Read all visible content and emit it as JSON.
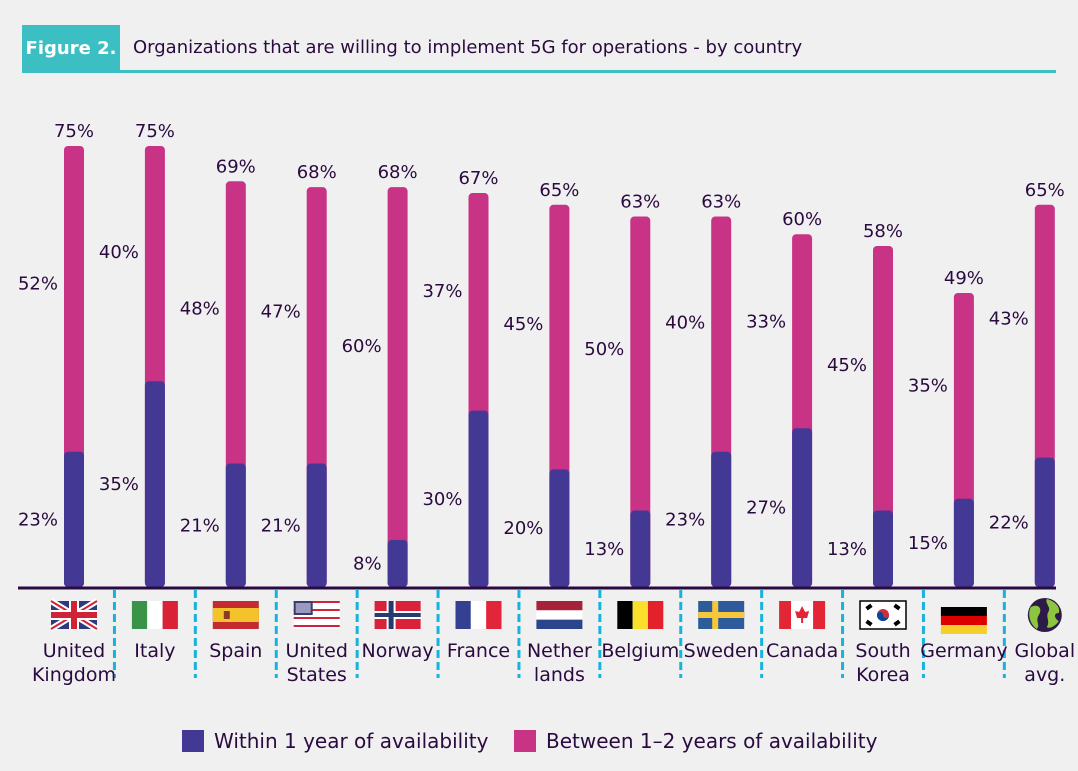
{
  "header": {
    "figure_label": "Figure 2.",
    "title": "Organizations that are willing to implement 5G for operations - by country"
  },
  "colors": {
    "within_1_year": "#433995",
    "between_1_2_years": "#c83386",
    "axis": "#2a0a3f",
    "divider": "#17b3df",
    "accent": "#3bbfc2",
    "text": "#2a0a3f"
  },
  "legend": [
    {
      "label": "Within 1 year of availability",
      "color": "#433995"
    },
    {
      "label": "Between 1–2 years of availability",
      "color": "#c83386"
    }
  ],
  "chart_data": {
    "type": "bar",
    "stacked": true,
    "title": "Organizations that are willing to implement 5G for operations - by country",
    "xlabel": "",
    "ylabel": "",
    "ylim": [
      0,
      80
    ],
    "grid": false,
    "legend_position": "bottom",
    "unit": "%",
    "categories": [
      {
        "name": "United Kingdom",
        "lines": [
          "United",
          "Kingdom"
        ],
        "icon": "uk-flag"
      },
      {
        "name": "Italy",
        "lines": [
          "Italy"
        ],
        "icon": "italy-flag"
      },
      {
        "name": "Spain",
        "lines": [
          "Spain"
        ],
        "icon": "spain-flag"
      },
      {
        "name": "United States",
        "lines": [
          "United",
          "States"
        ],
        "icon": "us-flag"
      },
      {
        "name": "Norway",
        "lines": [
          "Norway"
        ],
        "icon": "norway-flag"
      },
      {
        "name": "France",
        "lines": [
          "France"
        ],
        "icon": "france-flag"
      },
      {
        "name": "Netherlands",
        "lines": [
          "Nether",
          "lands"
        ],
        "icon": "netherlands-flag"
      },
      {
        "name": "Belgium",
        "lines": [
          "Belgium"
        ],
        "icon": "belgium-flag"
      },
      {
        "name": "Sweden",
        "lines": [
          "Sweden"
        ],
        "icon": "sweden-flag"
      },
      {
        "name": "Canada",
        "lines": [
          "Canada"
        ],
        "icon": "canada-flag"
      },
      {
        "name": "South Korea",
        "lines": [
          "South",
          "Korea"
        ],
        "icon": "south-korea-flag"
      },
      {
        "name": "Germany",
        "lines": [
          "Germany"
        ],
        "icon": "germany-flag"
      },
      {
        "name": "Global avg.",
        "lines": [
          "Global",
          "avg."
        ],
        "icon": "globe-icon"
      }
    ],
    "series": [
      {
        "name": "Within 1 year of availability",
        "values": [
          23,
          35,
          21,
          21,
          8,
          30,
          20,
          13,
          23,
          27,
          13,
          15,
          22
        ]
      },
      {
        "name": "Between 1–2 years of availability",
        "values": [
          52,
          40,
          48,
          47,
          60,
          37,
          45,
          50,
          40,
          33,
          45,
          35,
          43
        ]
      }
    ],
    "totals": [
      75,
      75,
      69,
      68,
      68,
      67,
      65,
      63,
      63,
      60,
      58,
      49,
      65
    ]
  }
}
